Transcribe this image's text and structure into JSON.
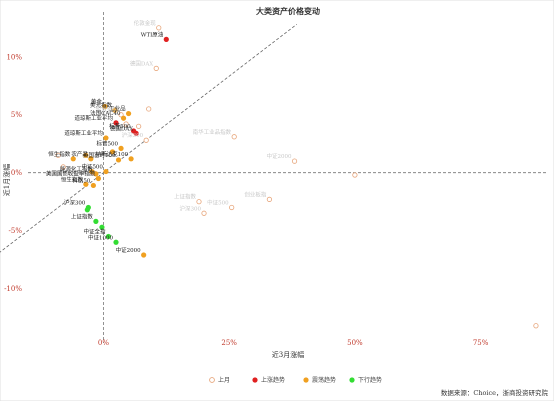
{
  "chart_data": {
    "type": "scatter",
    "title": "大类资产价格变动",
    "xlabel": "近3月涨幅",
    "ylabel": "近1月涨幅",
    "x_ticks": [
      0,
      25,
      50,
      75
    ],
    "x_tick_labels": [
      "0%",
      "25%",
      "50%",
      "75%"
    ],
    "y_ticks": [
      10,
      5,
      0,
      -5,
      -10
    ],
    "y_tick_labels": [
      "10%",
      "5%",
      "0%",
      "-5%",
      "-10%"
    ],
    "xlim": [
      -15,
      88
    ],
    "ylim": [
      -14,
      13
    ],
    "grid": false,
    "zero_lines": true,
    "reference_line": {
      "slope": 0.333,
      "intercept": 0,
      "style": "dashed"
    },
    "legend": [
      "上月",
      "上涨趋势",
      "震荡趋势",
      "下行趋势"
    ],
    "legend_placement": "bottom",
    "source": "数据来源：Choice，浙商投资研究院",
    "series": [
      {
        "name": "上月",
        "marker": "hollow",
        "color": "#e7a57a",
        "points": [
          {
            "label": "伦敦金现",
            "x": 11,
            "y": 12.5
          },
          {
            "label": "德国DAX",
            "x": 10.5,
            "y": 9
          },
          {
            "label": "",
            "x": 9,
            "y": 5.5
          },
          {
            "label": "伦敦金现",
            "x": 3.5,
            "y": 5
          },
          {
            "label": "",
            "x": 4.5,
            "y": 4.2
          },
          {
            "label": "",
            "x": 7,
            "y": 4
          },
          {
            "label": "沪深300",
            "x": 8.5,
            "y": 2.8
          },
          {
            "label": "南华工业品指数",
            "x": 26,
            "y": 3.1
          },
          {
            "label": "中证2000",
            "x": 38,
            "y": 1
          },
          {
            "label": "",
            "x": 50,
            "y": -0.2
          },
          {
            "label": "创业板指",
            "x": 33,
            "y": -2.3
          },
          {
            "label": "上证指数",
            "x": 19,
            "y": -2.5
          },
          {
            "label": "中证500",
            "x": 25.5,
            "y": -3
          },
          {
            "label": "沪深300",
            "x": 20,
            "y": -3.5
          },
          {
            "label": "",
            "x": 86,
            "y": -13.2
          },
          {
            "label": "",
            "x": -9,
            "y": 1.5
          },
          {
            "label": "",
            "x": -8,
            "y": 0.5
          },
          {
            "label": "",
            "x": -2,
            "y": 0
          }
        ]
      },
      {
        "name": "上涨趋势",
        "marker": "filled",
        "color": "#e02020",
        "points": [
          {
            "label": "WTI原油",
            "x": 12.5,
            "y": 11.5
          },
          {
            "label": "道琼斯工业平均",
            "x": 2.5,
            "y": 4.3
          },
          {
            "label": "标普500",
            "x": 6,
            "y": 3.6
          },
          {
            "label": "德国DAX",
            "x": 6.5,
            "y": 3.4
          }
        ]
      },
      {
        "name": "震荡趋势",
        "marker": "filled",
        "color": "#f0a020",
        "points": [
          {
            "label": "黄金",
            "x": 0.3,
            "y": 5.7
          },
          {
            "label": "美元指数",
            "x": 2.3,
            "y": 5.4
          },
          {
            "label": "工业品",
            "x": 5,
            "y": 5.1
          },
          {
            "label": "法国CAC40",
            "x": 4,
            "y": 4.7
          },
          {
            "label": "道琼斯工业平均",
            "x": 0.5,
            "y": 3
          },
          {
            "label": "标普500",
            "x": 3.5,
            "y": 2.1
          },
          {
            "label": "",
            "x": 1.8,
            "y": 1.8
          },
          {
            "label": "纳斯达克100",
            "x": 5.5,
            "y": 1.2
          },
          {
            "label": "英国富时100",
            "x": 3,
            "y": 1.1
          },
          {
            "label": "",
            "x": -3.5,
            "y": 1.5
          },
          {
            "label": "恒生指数",
            "x": -6,
            "y": 1.2
          },
          {
            "label": "农产品",
            "x": -2.5,
            "y": 1.2
          },
          {
            "label": "中证500",
            "x": 0.5,
            "y": 0.1
          },
          {
            "label": "",
            "x": -2.3,
            "y": 0.1
          },
          {
            "label": "能源化工指数",
            "x": -1.5,
            "y": -0.1
          },
          {
            "label": "美国国债收益率指数",
            "x": -1,
            "y": -0.5
          },
          {
            "label": "恒生指数",
            "x": -3.5,
            "y": -1.0
          },
          {
            "label": "科创50",
            "x": -2,
            "y": -1.1
          },
          {
            "label": "中证2000",
            "x": 8,
            "y": -7.1
          }
        ]
      },
      {
        "name": "下行趋势",
        "marker": "filled",
        "color": "#33dd33",
        "points": [
          {
            "label": "沪深300",
            "x": -3,
            "y": -3
          },
          {
            "label": "",
            "x": -3.2,
            "y": -3.2
          },
          {
            "label": "上证指数",
            "x": -1.5,
            "y": -4.2
          },
          {
            "label": "",
            "x": -0.3,
            "y": -4.7
          },
          {
            "label": "中证全指",
            "x": 1,
            "y": -5.5
          },
          {
            "label": "中证1000",
            "x": 2.5,
            "y": -6
          }
        ]
      }
    ]
  }
}
